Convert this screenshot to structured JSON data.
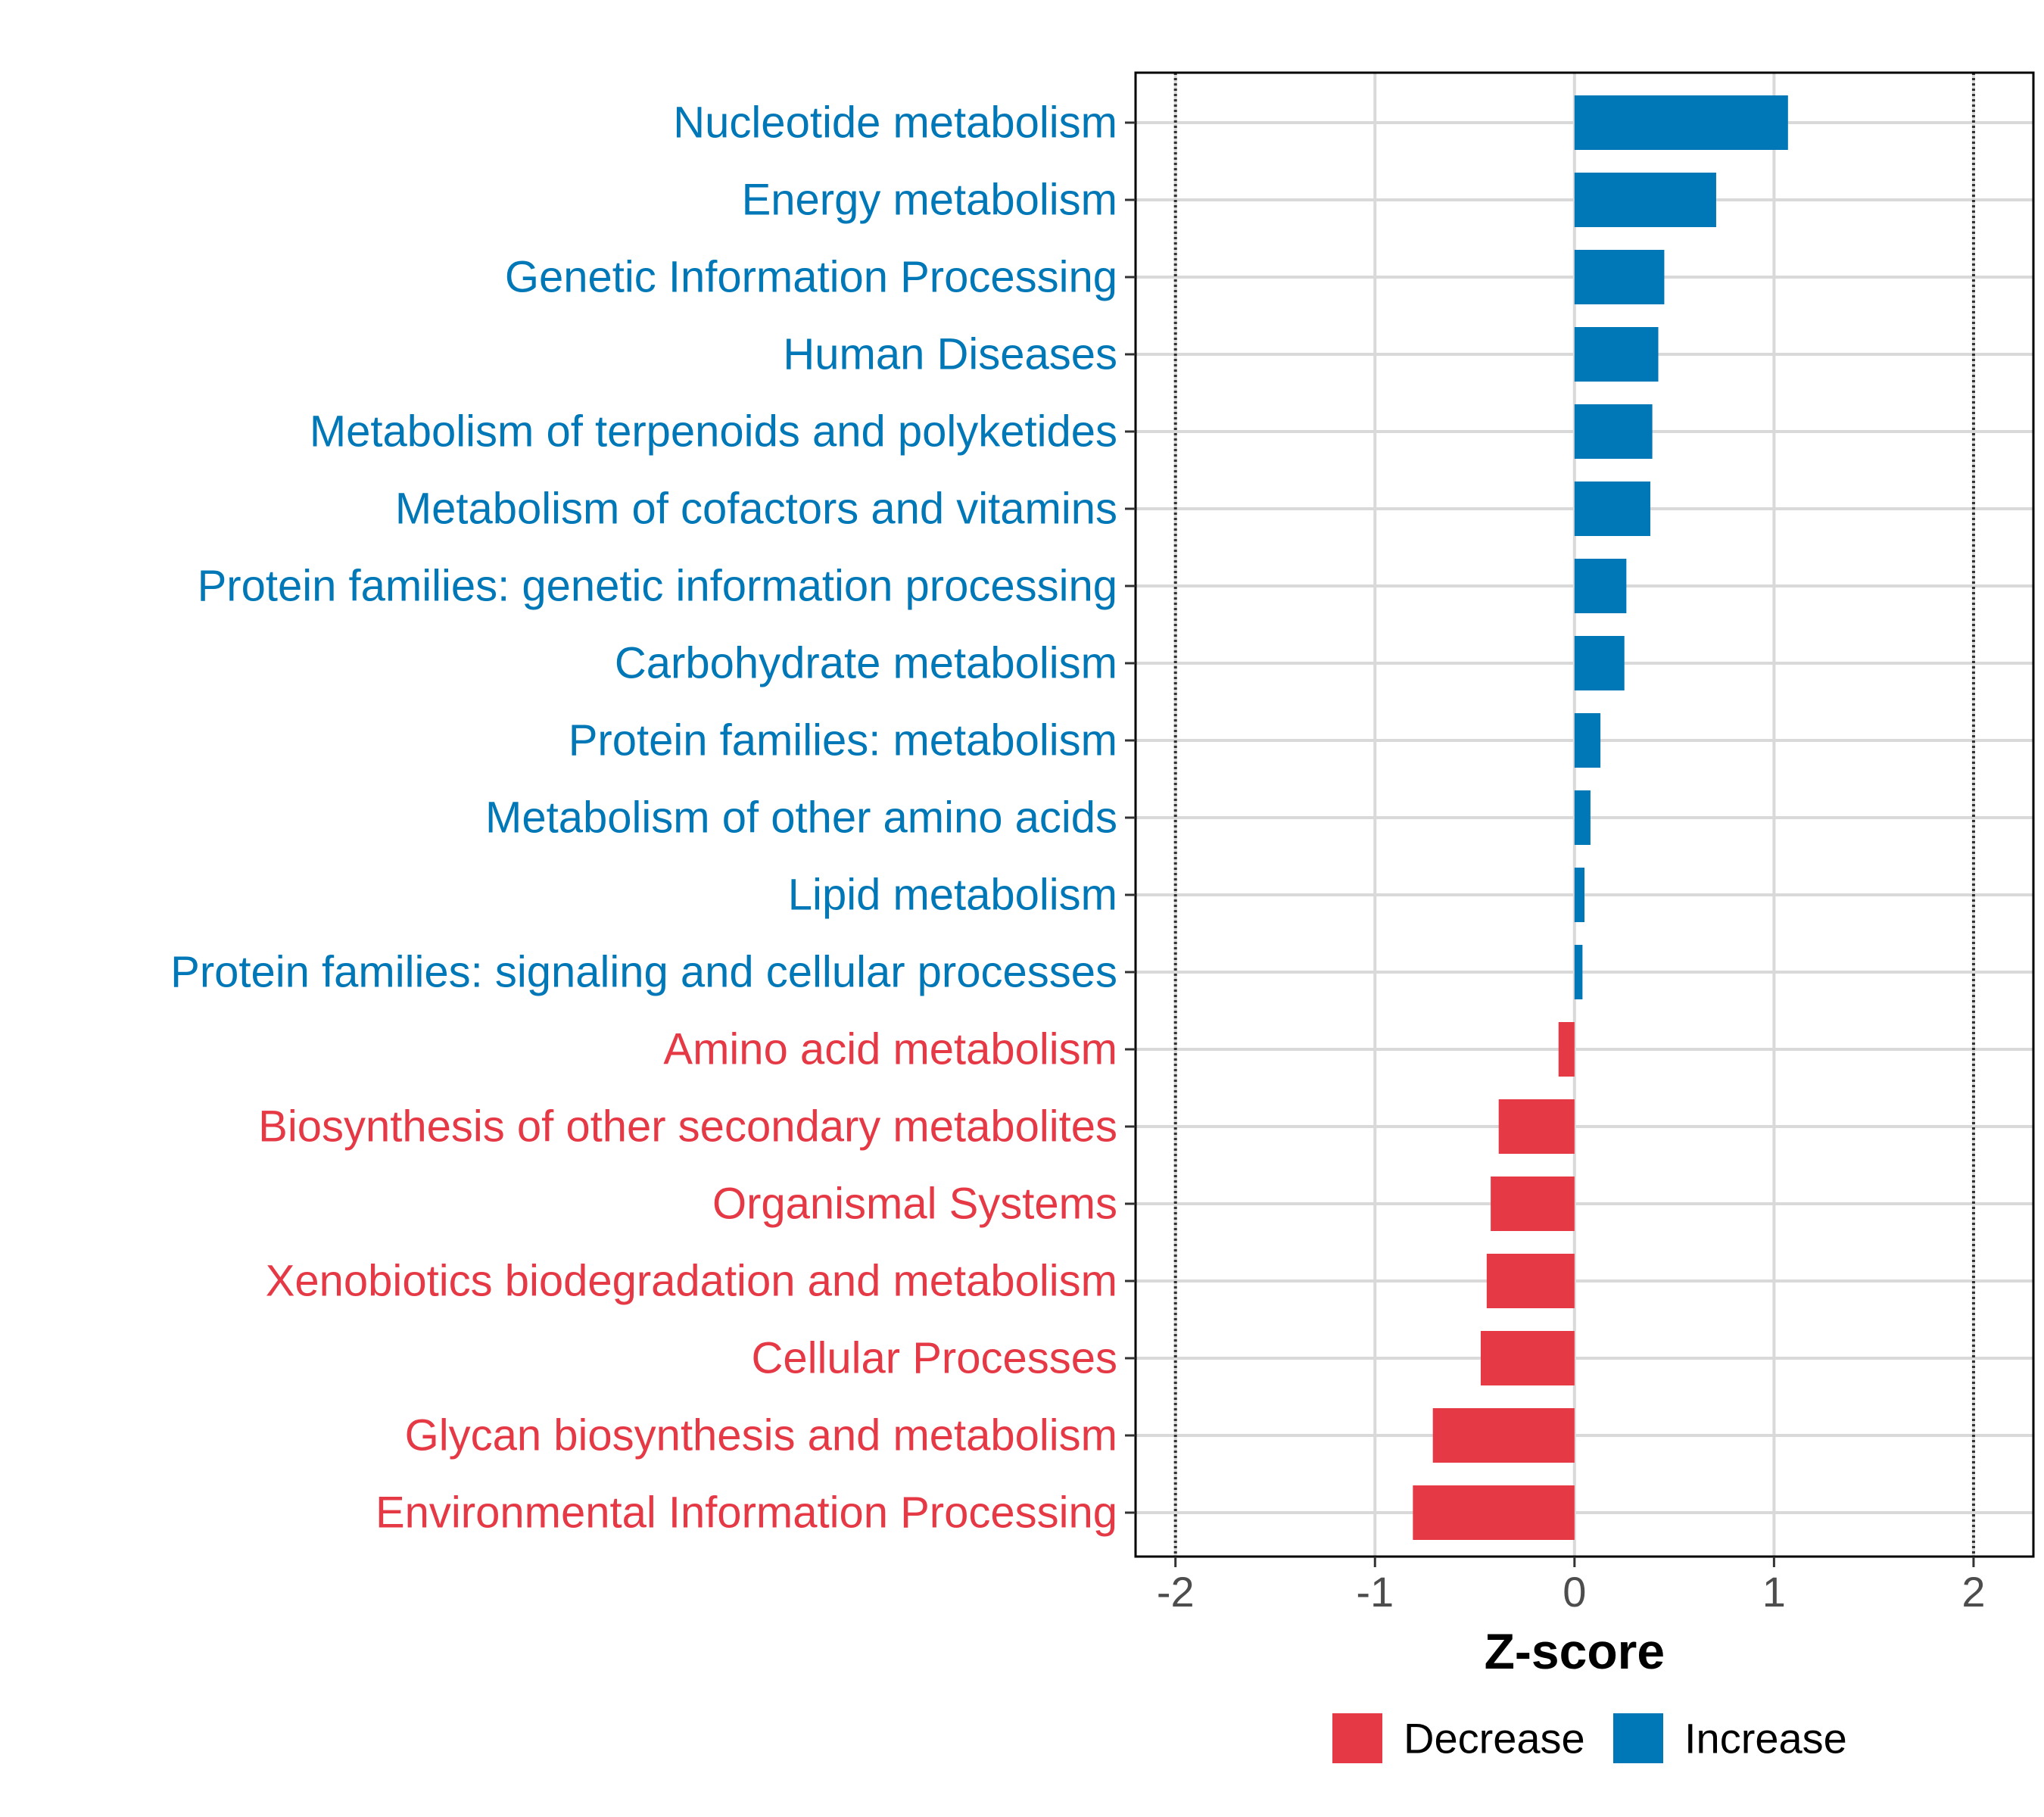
{
  "chart_data": {
    "type": "bar",
    "orientation": "horizontal",
    "xlabel": "Z-score",
    "xlim": [
      -2.2,
      2.3
    ],
    "xticks": [
      -2,
      -1,
      0,
      1,
      2
    ],
    "xtick_labels": [
      "-2",
      "-1",
      "0",
      "1",
      "2"
    ],
    "reference_lines": [
      -2,
      2
    ],
    "grid": true,
    "legend_position": "bottom",
    "colors": {
      "Decrease": "#e63946",
      "Increase": "#0077b6"
    },
    "legend": [
      {
        "label": "Decrease",
        "color": "#e63946"
      },
      {
        "label": "Increase",
        "color": "#0077b6"
      }
    ],
    "categories": [
      "Nucleotide metabolism",
      "Energy metabolism",
      "Genetic Information Processing",
      "Human Diseases",
      "Metabolism of terpenoids and polyketides",
      "Metabolism of cofactors and vitamins",
      "Protein families: genetic information processing",
      "Carbohydrate metabolism",
      "Protein families: metabolism",
      "Metabolism of other amino acids",
      "Lipid metabolism",
      "Protein families: signaling and cellular processes",
      "Amino acid metabolism",
      "Biosynthesis of other secondary metabolites",
      "Organismal Systems",
      "Xenobiotics biodegradation and metabolism",
      "Cellular Processes",
      "Glycan biosynthesis and metabolism",
      "Environmental Information Processing"
    ],
    "values": [
      1.07,
      0.71,
      0.45,
      0.42,
      0.39,
      0.38,
      0.26,
      0.25,
      0.13,
      0.08,
      0.05,
      0.04,
      -0.08,
      -0.38,
      -0.42,
      -0.44,
      -0.47,
      -0.71,
      -0.81
    ],
    "groups": [
      "Increase",
      "Increase",
      "Increase",
      "Increase",
      "Increase",
      "Increase",
      "Increase",
      "Increase",
      "Increase",
      "Increase",
      "Increase",
      "Increase",
      "Decrease",
      "Decrease",
      "Decrease",
      "Decrease",
      "Decrease",
      "Decrease",
      "Decrease"
    ]
  }
}
